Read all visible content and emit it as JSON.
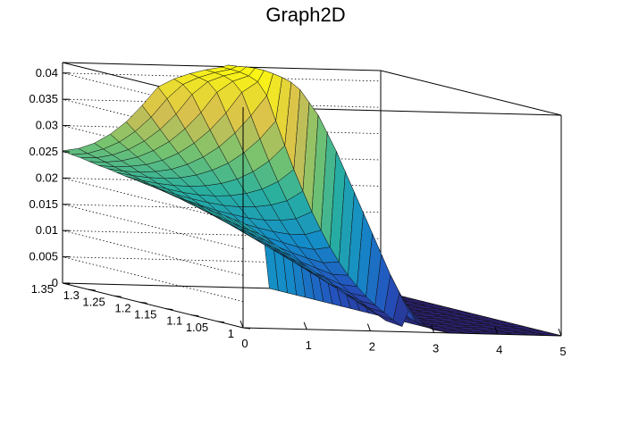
{
  "chart_data": {
    "type": "surface",
    "title": "Graph2D",
    "x_range": [
      0,
      5
    ],
    "y_range": [
      1,
      1.35
    ],
    "z_range": [
      0,
      0.042
    ],
    "x_ticks": [
      0,
      1,
      2,
      3,
      4,
      5
    ],
    "y_ticks": [
      1,
      1.05,
      1.1,
      1.15,
      1.2,
      1.25,
      1.3,
      1.35
    ],
    "z_ticks": [
      0,
      0.005,
      0.01,
      0.015,
      0.02,
      0.025,
      0.03,
      0.035,
      0.04
    ],
    "x_tick_labels": [
      "0",
      "1",
      "2",
      "3",
      "4",
      "5"
    ],
    "y_tick_labels": [
      "1",
      "1.05",
      "1.1",
      "1.15",
      "1.2",
      "1.25",
      "1.3",
      "1.35"
    ],
    "z_tick_labels": [
      "0",
      "0.005",
      "0.01",
      "0.015",
      "0.02",
      "0.025",
      "0.03",
      "0.035",
      "0.04"
    ],
    "palette": "viridis-like (blue to green to yellow)",
    "grid": true,
    "x_grid": [
      0,
      0.25,
      0.5,
      0.75,
      1,
      1.25,
      1.5,
      1.75,
      2,
      2.25,
      2.5,
      2.6,
      2.75,
      3,
      3.25,
      3.5,
      3.75,
      4,
      4.25,
      4.5,
      4.75,
      5
    ],
    "y_grid": [
      1,
      1.0175,
      1.035,
      1.0525,
      1.07,
      1.0875,
      1.105,
      1.1225,
      1.14,
      1.1575,
      1.175,
      1.1925,
      1.21,
      1.2275,
      1.245,
      1.2625,
      1.28,
      1.2975,
      1.315,
      1.3325,
      1.35
    ],
    "z": [
      [
        0.02,
        0.018,
        0.016,
        0.014,
        0.012,
        0.01,
        0.008,
        0.006,
        0.004,
        0.002,
        0.001,
        0.004,
        0.002,
        0.0005,
        0,
        0,
        0,
        0,
        0,
        0,
        0,
        0
      ],
      [
        0.0202,
        0.0182,
        0.0163,
        0.0143,
        0.0124,
        0.0104,
        0.0084,
        0.0065,
        0.0046,
        0.0028,
        0.0018,
        0.007,
        0.004,
        0.0008,
        0,
        0,
        0,
        0,
        0,
        0,
        0,
        0
      ],
      [
        0.0205,
        0.0185,
        0.0166,
        0.0147,
        0.0128,
        0.0109,
        0.009,
        0.0072,
        0.0054,
        0.0037,
        0.0028,
        0.01,
        0.0065,
        0.0012,
        0,
        0,
        0,
        0,
        0,
        0,
        0,
        0
      ],
      [
        0.0207,
        0.0188,
        0.017,
        0.0151,
        0.0133,
        0.0114,
        0.0096,
        0.0079,
        0.0062,
        0.0046,
        0.0038,
        0.0135,
        0.009,
        0.0018,
        0,
        0,
        0,
        0,
        0,
        0,
        0,
        0
      ],
      [
        0.021,
        0.0191,
        0.0173,
        0.0155,
        0.0137,
        0.012,
        0.0103,
        0.0086,
        0.007,
        0.0056,
        0.005,
        0.017,
        0.0115,
        0.0025,
        0,
        0,
        0,
        0,
        0,
        0,
        0,
        0
      ],
      [
        0.0212,
        0.0194,
        0.0177,
        0.016,
        0.0143,
        0.0127,
        0.0111,
        0.0095,
        0.0081,
        0.0068,
        0.0065,
        0.0205,
        0.014,
        0.0032,
        0,
        0,
        0,
        0,
        0,
        0,
        0,
        0
      ],
      [
        0.0215,
        0.0198,
        0.0182,
        0.0166,
        0.015,
        0.0135,
        0.012,
        0.0106,
        0.0094,
        0.0083,
        0.0082,
        0.024,
        0.0165,
        0.004,
        0,
        0,
        0,
        0,
        0,
        0,
        0,
        0
      ],
      [
        0.0218,
        0.0202,
        0.0187,
        0.0172,
        0.0158,
        0.0144,
        0.0131,
        0.0119,
        0.0109,
        0.0101,
        0.0103,
        0.0275,
        0.019,
        0.005,
        0,
        0,
        0,
        0,
        0,
        0,
        0,
        0
      ],
      [
        0.022,
        0.0206,
        0.0192,
        0.0179,
        0.0166,
        0.0154,
        0.0143,
        0.0134,
        0.0126,
        0.0122,
        0.0127,
        0.031,
        0.022,
        0.006,
        0,
        0,
        0,
        0,
        0,
        0,
        0,
        0
      ],
      [
        0.0223,
        0.021,
        0.0198,
        0.0186,
        0.0175,
        0.0165,
        0.0157,
        0.015,
        0.0146,
        0.0146,
        0.0155,
        0.034,
        0.025,
        0.0072,
        0,
        0,
        0,
        0,
        0,
        0,
        0,
        0
      ],
      [
        0.0226,
        0.0214,
        0.0203,
        0.0193,
        0.0184,
        0.0177,
        0.0171,
        0.0168,
        0.0168,
        0.0172,
        0.0186,
        0.037,
        0.028,
        0.0085,
        0,
        0,
        0,
        0,
        0,
        0,
        0,
        0
      ],
      [
        0.0228,
        0.0218,
        0.0209,
        0.0201,
        0.0195,
        0.019,
        0.0188,
        0.0189,
        0.0193,
        0.0202,
        0.0221,
        0.039,
        0.031,
        0.01,
        0,
        0,
        0,
        0,
        0,
        0,
        0,
        0
      ],
      [
        0.0231,
        0.0222,
        0.0215,
        0.0209,
        0.0205,
        0.0204,
        0.0205,
        0.021,
        0.0219,
        0.0234,
        0.0258,
        0.041,
        0.034,
        0.0118,
        0,
        0,
        0,
        0,
        0,
        0,
        0,
        0
      ],
      [
        0.0233,
        0.0226,
        0.0221,
        0.0218,
        0.0217,
        0.0219,
        0.0224,
        0.0233,
        0.0248,
        0.0269,
        0.0299,
        0.042,
        0.036,
        0.014,
        0,
        0,
        0,
        0,
        0,
        0,
        0,
        0
      ],
      [
        0.0236,
        0.0231,
        0.0228,
        0.0227,
        0.0229,
        0.0235,
        0.0245,
        0.0259,
        0.028,
        0.0307,
        0.0342,
        0.0425,
        0.039,
        0.0165,
        0,
        0,
        0,
        0,
        0,
        0,
        0,
        0
      ],
      [
        0.0239,
        0.0235,
        0.0234,
        0.0236,
        0.0241,
        0.0251,
        0.0266,
        0.0286,
        0.0313,
        0.0347,
        0.0386,
        0.0428,
        0.041,
        0.019,
        0,
        0,
        0,
        0,
        0,
        0,
        0,
        0
      ],
      [
        0.0241,
        0.0239,
        0.0241,
        0.0245,
        0.0254,
        0.0268,
        0.0288,
        0.0314,
        0.0347,
        0.0387,
        0.0408,
        0.043,
        0.042,
        0.022,
        0,
        0,
        0,
        0,
        0,
        0,
        0,
        0
      ],
      [
        0.0244,
        0.0244,
        0.0247,
        0.0255,
        0.0268,
        0.0286,
        0.0311,
        0.0343,
        0.0382,
        0.0404,
        0.0415,
        0.043,
        0.0425,
        0.025,
        0,
        0,
        0,
        0,
        0,
        0,
        0,
        0
      ],
      [
        0.0247,
        0.0248,
        0.0254,
        0.0265,
        0.0282,
        0.0305,
        0.0335,
        0.0373,
        0.0398,
        0.041,
        0.0418,
        0.0428,
        0.042,
        0.027,
        0,
        0,
        0,
        0,
        0,
        0,
        0,
        0
      ],
      [
        0.0249,
        0.0252,
        0.0261,
        0.0275,
        0.0296,
        0.0324,
        0.036,
        0.0388,
        0.0402,
        0.0412,
        0.0419,
        0.0425,
        0.0415,
        0.028,
        0,
        0,
        0,
        0,
        0,
        0,
        0,
        0
      ],
      [
        0.0252,
        0.0257,
        0.0268,
        0.0286,
        0.031,
        0.0342,
        0.0378,
        0.0394,
        0.0405,
        0.0413,
        0.0419,
        0.0423,
        0.041,
        0.028,
        0,
        0,
        0,
        0,
        0,
        0,
        0,
        0
      ]
    ]
  }
}
